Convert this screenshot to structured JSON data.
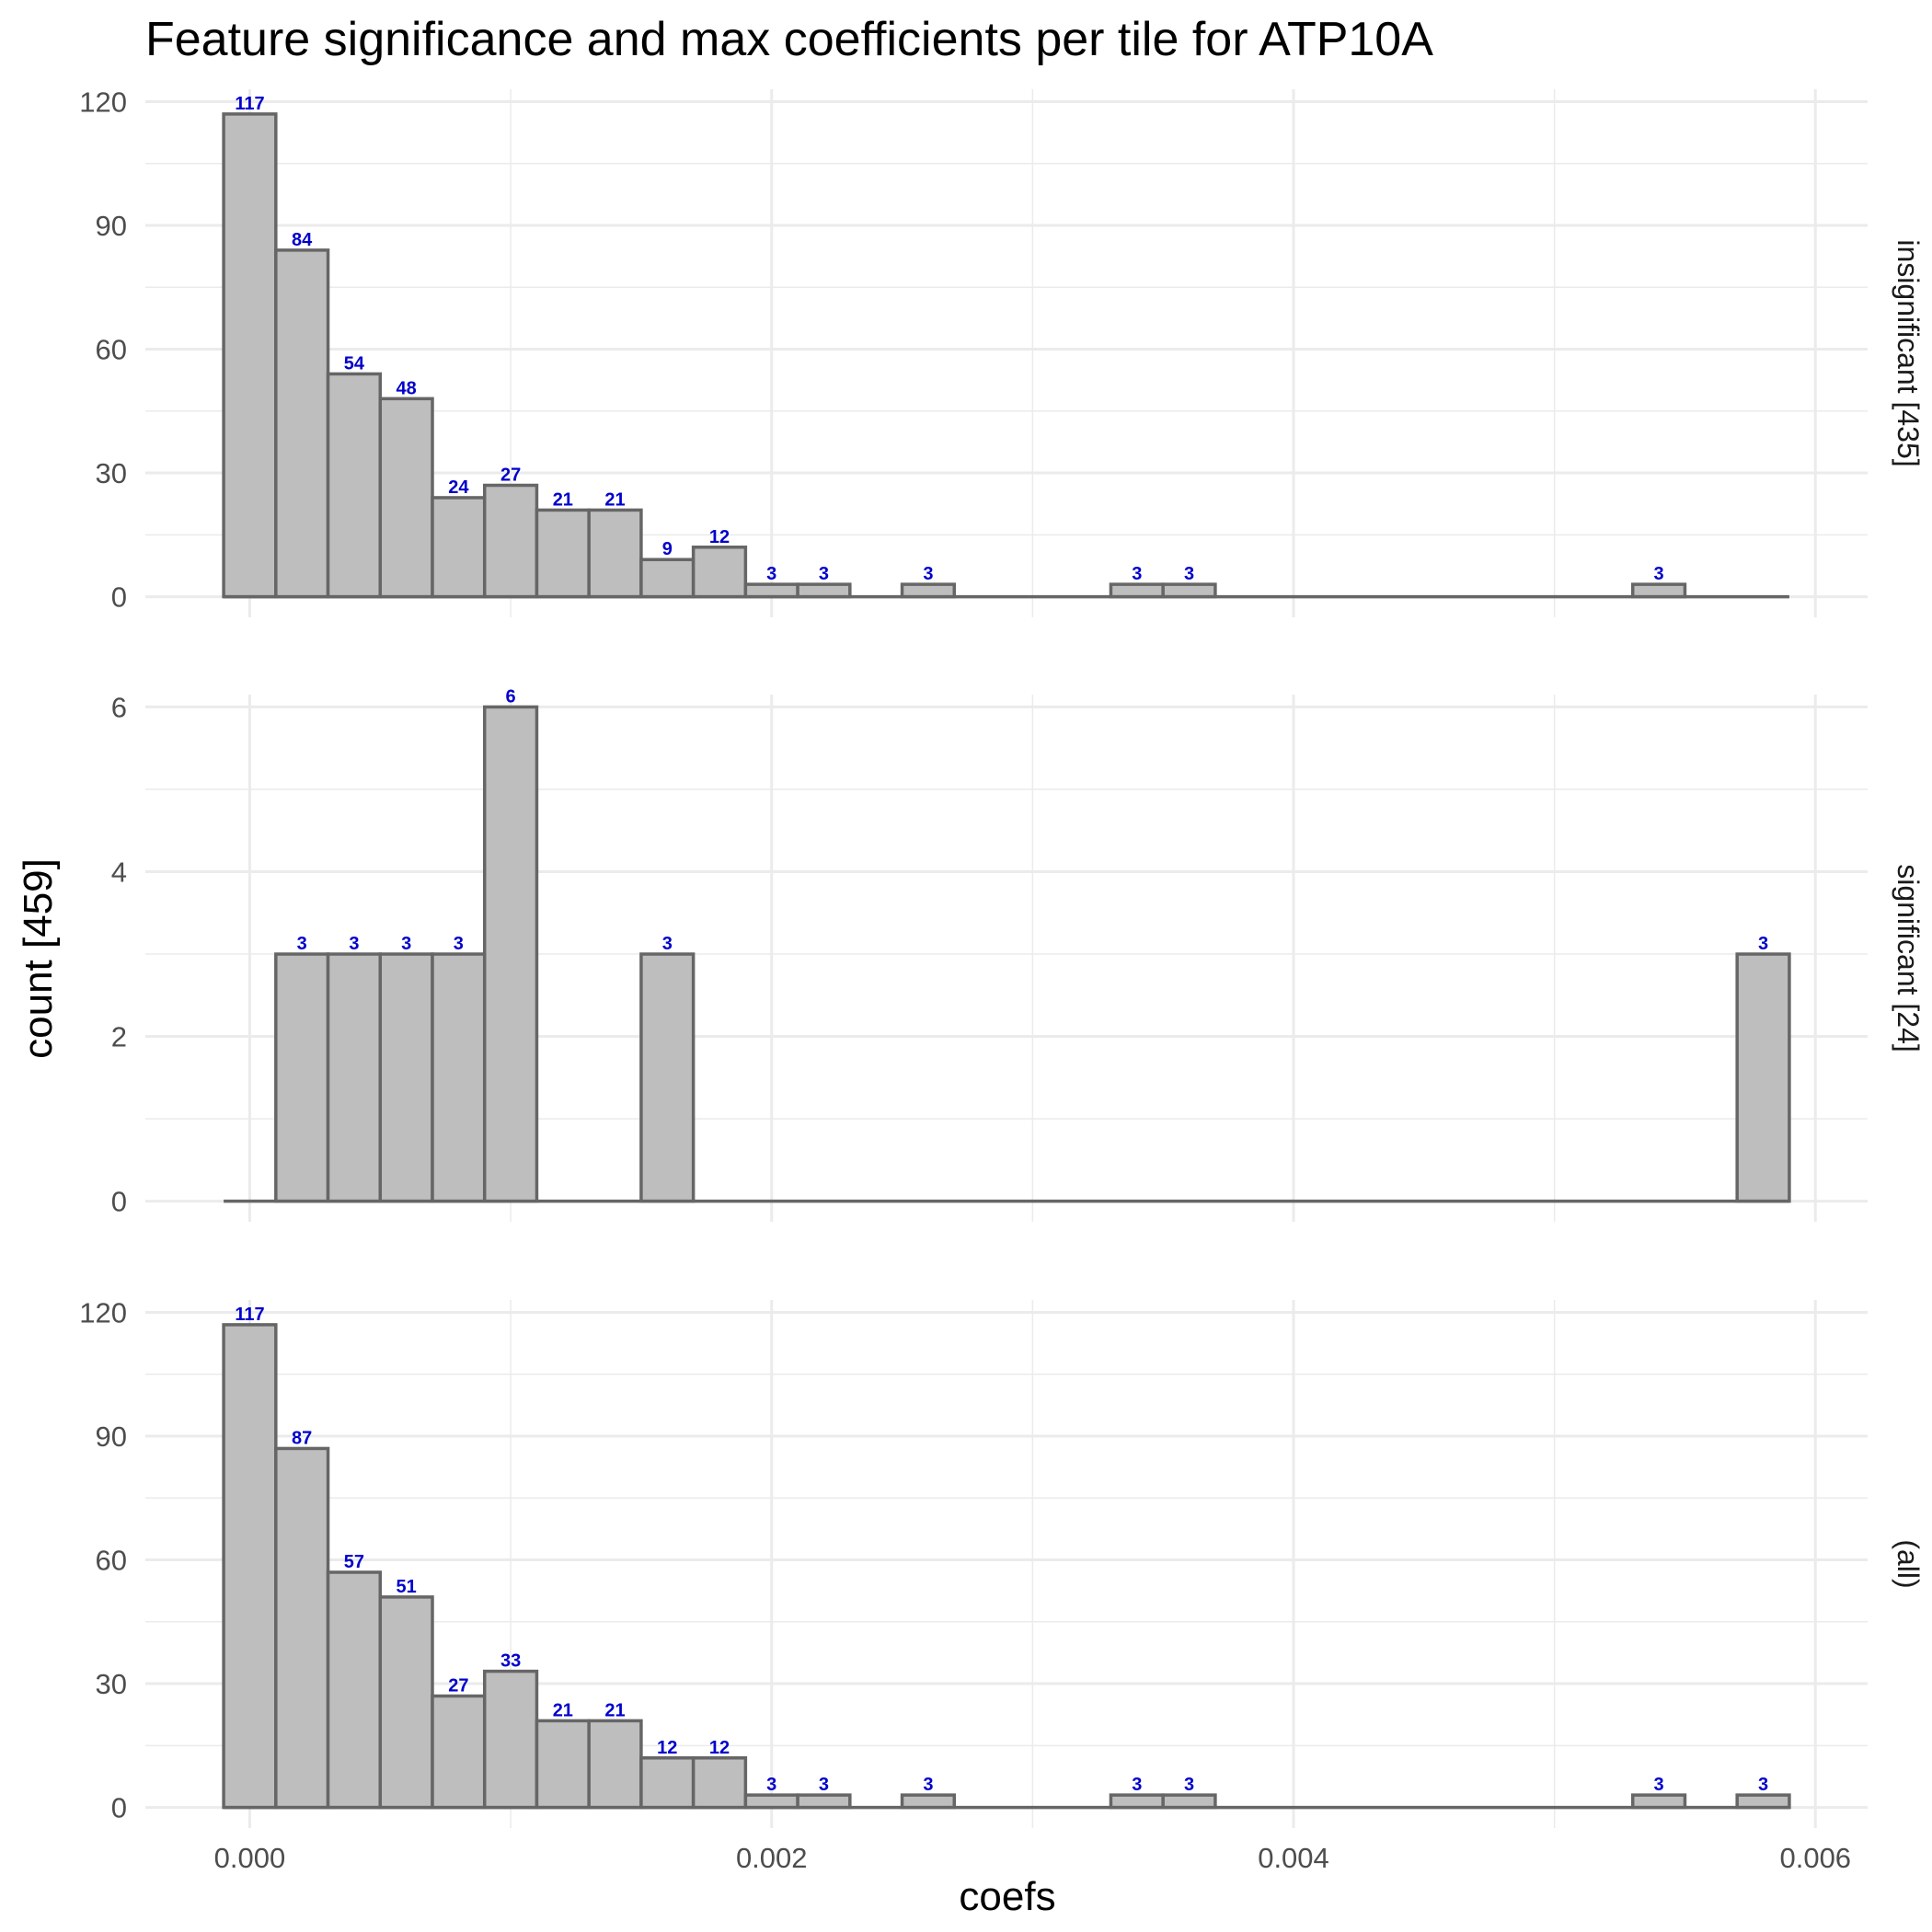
{
  "chart_data": {
    "type": "bar",
    "title": "Feature significance and max coefficients per tile for ATP10A",
    "xlabel": "coefs",
    "ylabel": "count [459]",
    "bin_width": 0.0002,
    "x_range": [
      -0.0001,
      0.0059
    ],
    "xlim": [
      -0.0004,
      0.0062
    ],
    "x_ticks": [
      "0.000",
      "0.002",
      "0.004",
      "0.006"
    ],
    "x_tick_values": [
      0.0,
      0.002,
      0.004,
      0.006
    ],
    "grid": true,
    "panels": [
      {
        "strip": "insignificant [435]",
        "ylim": [
          -5,
          123
        ],
        "y_ticks": [
          0,
          30,
          60,
          90,
          120
        ],
        "bins": [
          {
            "x": 0.0,
            "count": 117
          },
          {
            "x": 0.0002,
            "count": 84
          },
          {
            "x": 0.0004,
            "count": 54
          },
          {
            "x": 0.0006,
            "count": 48
          },
          {
            "x": 0.0008,
            "count": 24
          },
          {
            "x": 0.001,
            "count": 27
          },
          {
            "x": 0.0012,
            "count": 21
          },
          {
            "x": 0.0014,
            "count": 21
          },
          {
            "x": 0.0016,
            "count": 9
          },
          {
            "x": 0.0018,
            "count": 12
          },
          {
            "x": 0.002,
            "count": 3
          },
          {
            "x": 0.0022,
            "count": 3
          },
          {
            "x": 0.0026,
            "count": 3
          },
          {
            "x": 0.0034,
            "count": 3
          },
          {
            "x": 0.0036,
            "count": 3
          },
          {
            "x": 0.0054,
            "count": 3
          }
        ]
      },
      {
        "strip": "significant [24]",
        "ylim": [
          -0.25,
          6.15
        ],
        "y_ticks": [
          0,
          2,
          4,
          6
        ],
        "bins": [
          {
            "x": 0.0002,
            "count": 3
          },
          {
            "x": 0.0004,
            "count": 3
          },
          {
            "x": 0.0006,
            "count": 3
          },
          {
            "x": 0.0008,
            "count": 3
          },
          {
            "x": 0.001,
            "count": 6
          },
          {
            "x": 0.0016,
            "count": 3
          },
          {
            "x": 0.0058,
            "count": 3
          }
        ]
      },
      {
        "strip": "(all)",
        "ylim": [
          -5,
          123
        ],
        "y_ticks": [
          0,
          30,
          60,
          90,
          120
        ],
        "bins": [
          {
            "x": 0.0,
            "count": 117
          },
          {
            "x": 0.0002,
            "count": 87
          },
          {
            "x": 0.0004,
            "count": 57
          },
          {
            "x": 0.0006,
            "count": 51
          },
          {
            "x": 0.0008,
            "count": 27
          },
          {
            "x": 0.001,
            "count": 33
          },
          {
            "x": 0.0012,
            "count": 21
          },
          {
            "x": 0.0014,
            "count": 21
          },
          {
            "x": 0.0016,
            "count": 12
          },
          {
            "x": 0.0018,
            "count": 12
          },
          {
            "x": 0.002,
            "count": 3
          },
          {
            "x": 0.0022,
            "count": 3
          },
          {
            "x": 0.0026,
            "count": 3
          },
          {
            "x": 0.0034,
            "count": 3
          },
          {
            "x": 0.0036,
            "count": 3
          },
          {
            "x": 0.0054,
            "count": 3
          },
          {
            "x": 0.0058,
            "count": 3
          }
        ]
      }
    ],
    "colors": {
      "bar_fill": "#bebebe",
      "bar_outline": "#666666",
      "data_label": "#0000cc",
      "grid": "#ebebeb"
    }
  }
}
